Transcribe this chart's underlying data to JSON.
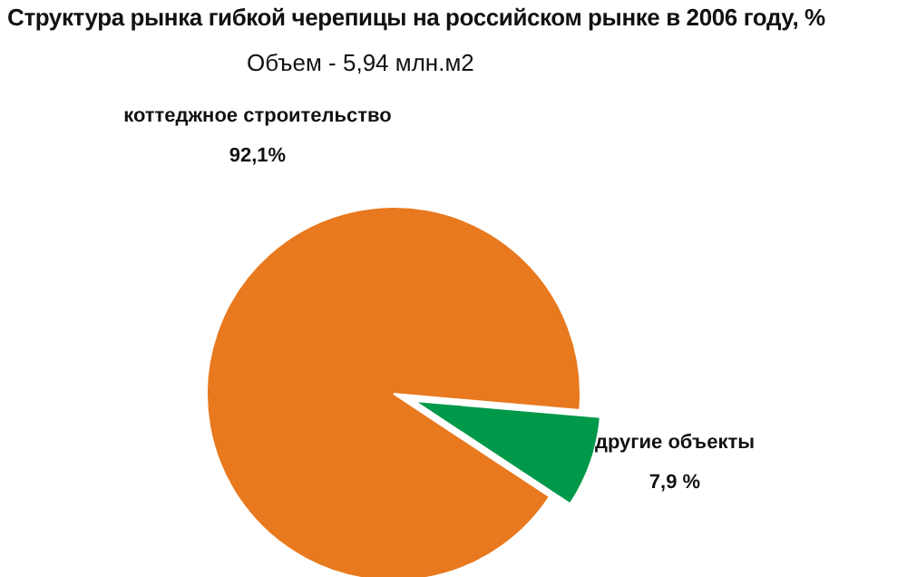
{
  "chart_data": {
    "type": "pie",
    "title": "Структура рынка гибкой черепицы на российском рынке в 2006 году, %",
    "subtitle": "Объем - 5,94 млн.м2",
    "categories": [
      "коттеджное строительство",
      "другие объекты"
    ],
    "values": [
      92.1,
      7.9
    ],
    "colors": [
      "#e8791e",
      "#00994a"
    ],
    "value_labels": [
      "92,1%",
      "7,9 %"
    ]
  }
}
